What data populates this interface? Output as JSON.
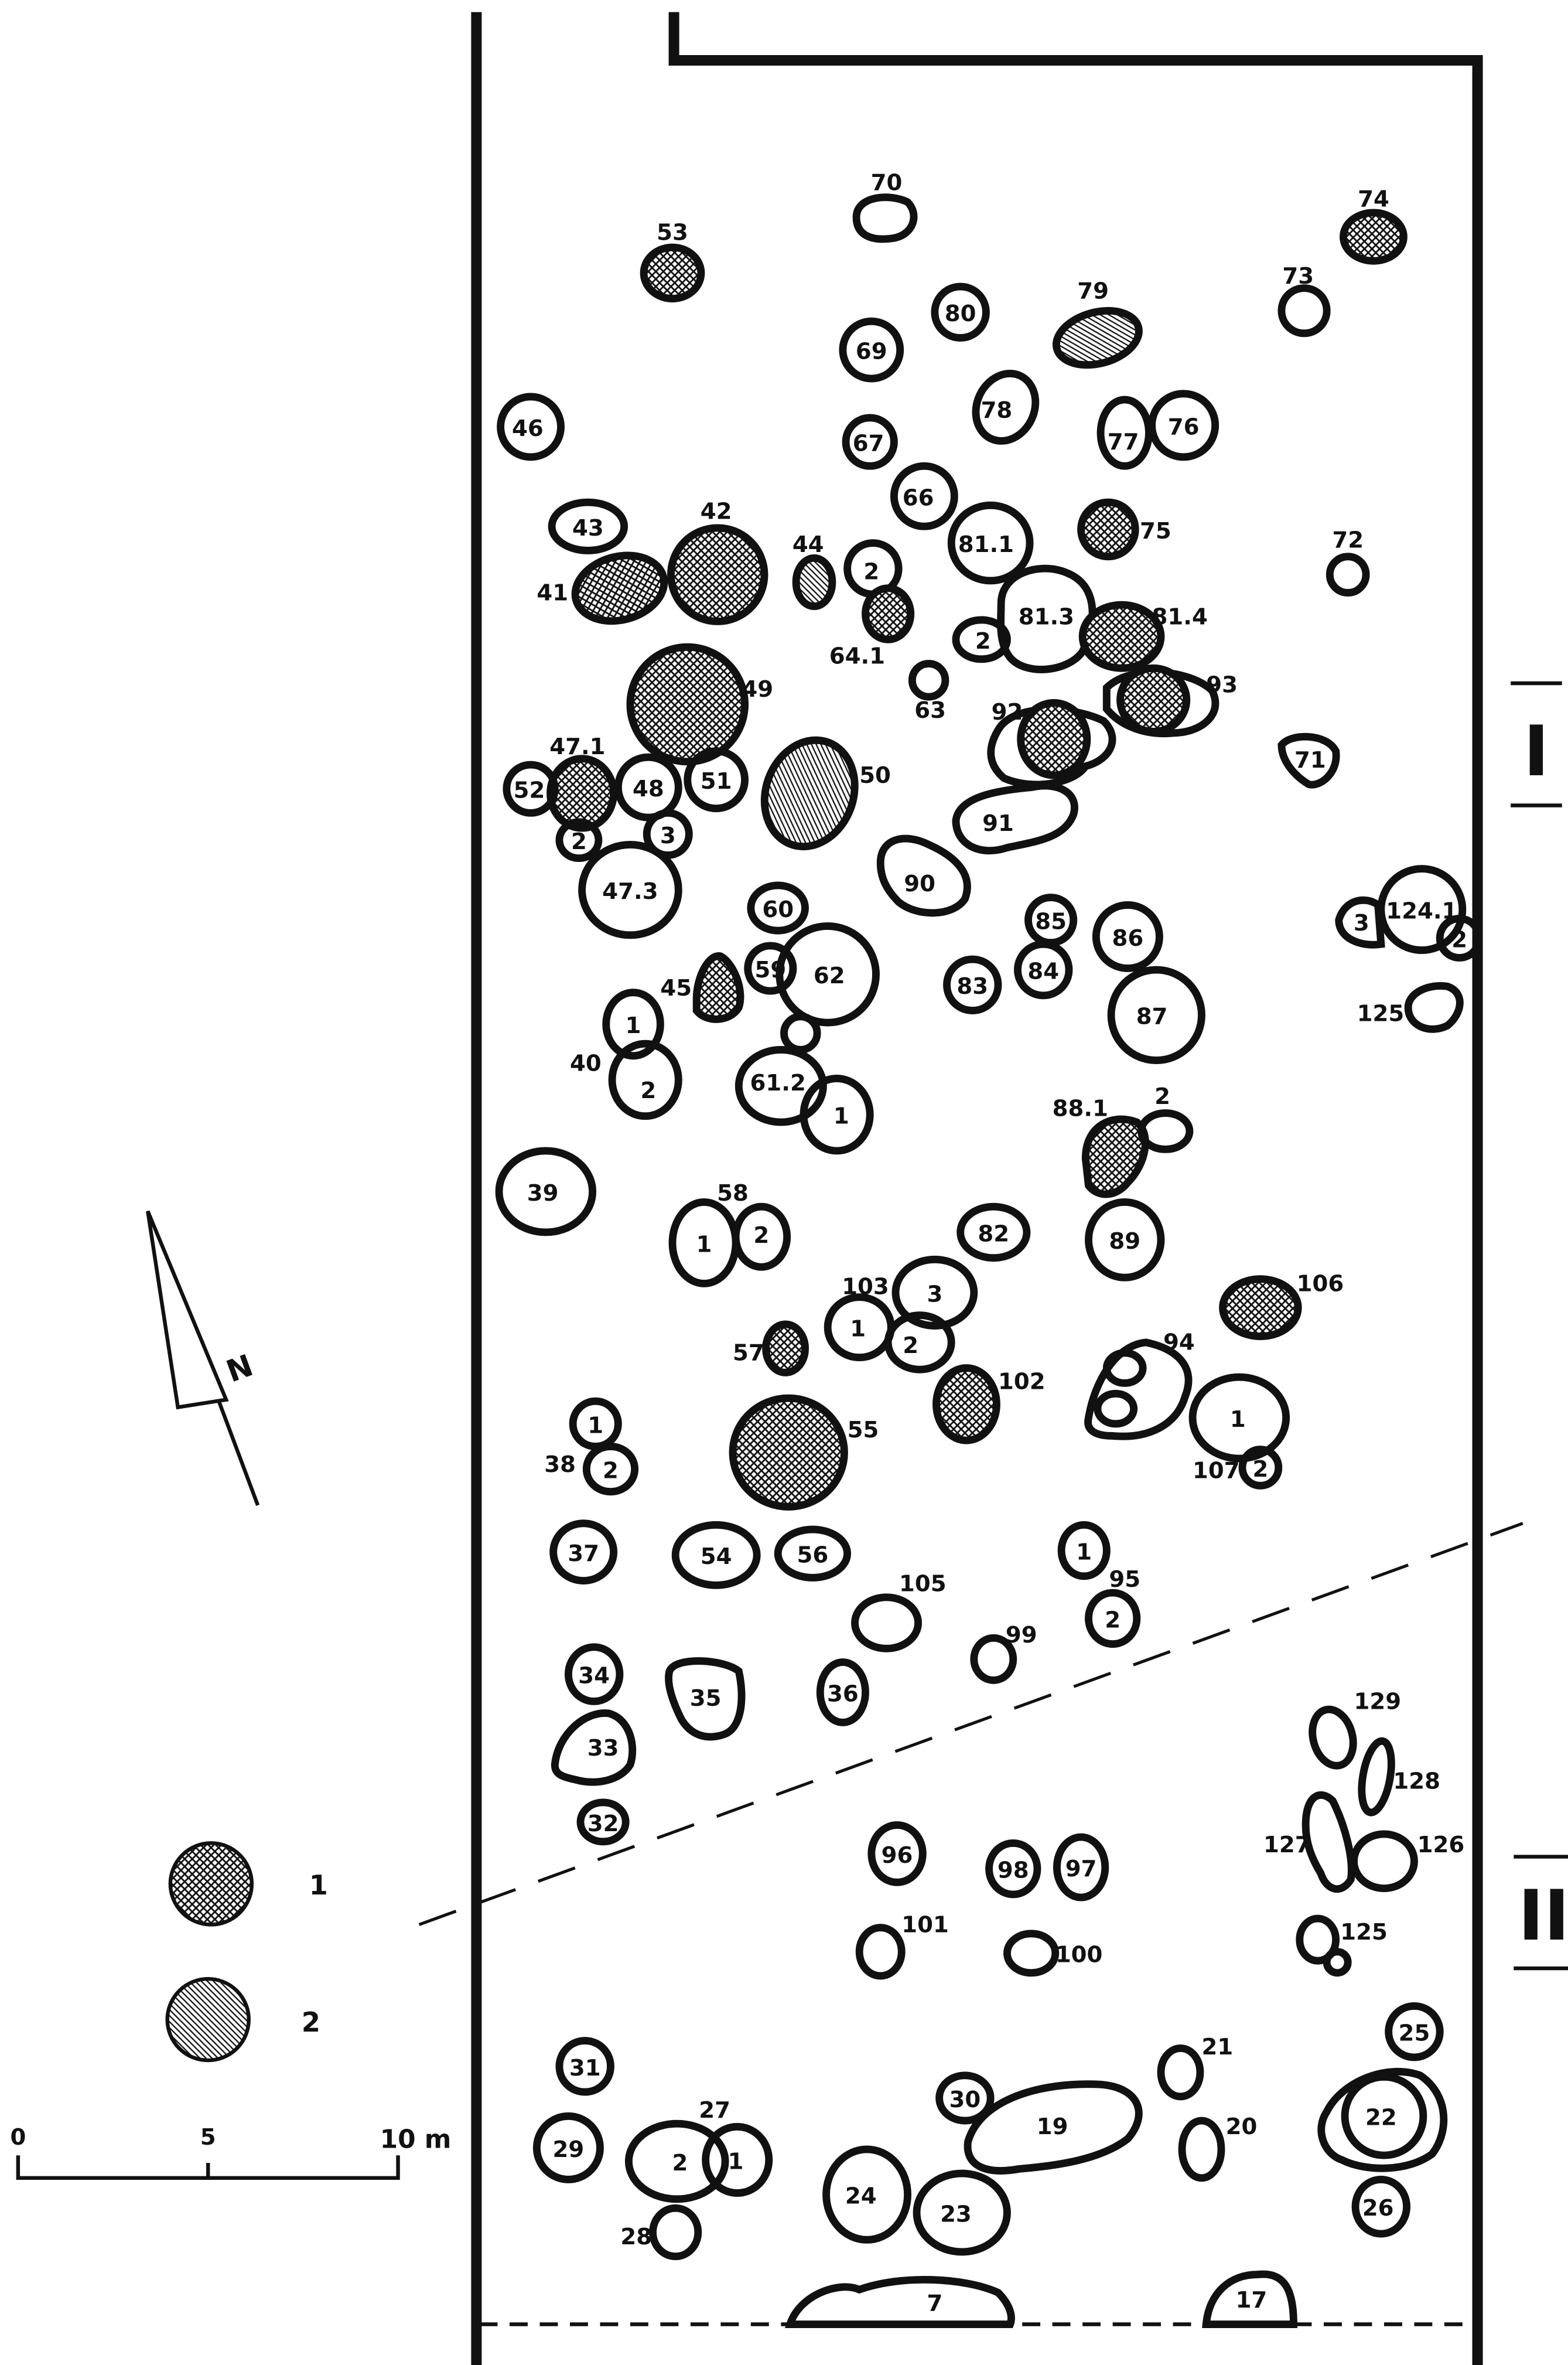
{
  "map": {
    "sections": [
      "I",
      "II"
    ],
    "legend": [
      {
        "key": "1",
        "fill": "crosshatch"
      },
      {
        "key": "2",
        "fill": "diagonal-hatch"
      }
    ],
    "scale": {
      "labels": [
        "0",
        "5",
        "10 m"
      ]
    },
    "north_label": "N",
    "colors": {
      "ink": "#111111",
      "paper": "#ffffff"
    }
  },
  "features": [
    {
      "id": "70",
      "fill": "none"
    },
    {
      "id": "74",
      "fill": "cross"
    },
    {
      "id": "53",
      "fill": "cross"
    },
    {
      "id": "80",
      "fill": "none"
    },
    {
      "id": "79",
      "fill": "hatch"
    },
    {
      "id": "73",
      "fill": "none"
    },
    {
      "id": "69",
      "fill": "none"
    },
    {
      "id": "46",
      "fill": "none"
    },
    {
      "id": "78",
      "fill": "none"
    },
    {
      "id": "77",
      "fill": "none"
    },
    {
      "id": "76",
      "fill": "none"
    },
    {
      "id": "67",
      "fill": "none"
    },
    {
      "id": "66",
      "fill": "none"
    },
    {
      "id": "43",
      "fill": "none"
    },
    {
      "id": "42",
      "fill": "cross"
    },
    {
      "id": "75",
      "fill": "cross"
    },
    {
      "id": "72",
      "fill": "none"
    },
    {
      "id": "81.1",
      "fill": "none"
    },
    {
      "id": "41",
      "fill": "cross"
    },
    {
      "id": "44",
      "fill": "hatch"
    },
    {
      "id": "2",
      "fill": "none"
    },
    {
      "id": "64.1",
      "fill": "cross"
    },
    {
      "id": "81.3",
      "fill": "none"
    },
    {
      "id": "81.4",
      "fill": "cross"
    },
    {
      "id": "63",
      "fill": "none"
    },
    {
      "id": "49",
      "fill": "cross"
    },
    {
      "id": "93",
      "fill": "cross"
    },
    {
      "id": "92",
      "fill": "cross"
    },
    {
      "id": "71",
      "fill": "none"
    },
    {
      "id": "47.1",
      "fill": "cross"
    },
    {
      "id": "52",
      "fill": "none"
    },
    {
      "id": "48",
      "fill": "none"
    },
    {
      "id": "51",
      "fill": "none"
    },
    {
      "id": "50",
      "fill": "hatch"
    },
    {
      "id": "91",
      "fill": "none"
    },
    {
      "id": "47.3",
      "fill": "none"
    },
    {
      "id": "90",
      "fill": "none"
    },
    {
      "id": "60",
      "fill": "none"
    },
    {
      "id": "85",
      "fill": "none"
    },
    {
      "id": "86",
      "fill": "none"
    },
    {
      "id": "124.1",
      "fill": "none"
    },
    {
      "id": "59",
      "fill": "none"
    },
    {
      "id": "62",
      "fill": "none"
    },
    {
      "id": "84",
      "fill": "none"
    },
    {
      "id": "83",
      "fill": "none"
    },
    {
      "id": "45",
      "fill": "cross"
    },
    {
      "id": "87",
      "fill": "none"
    },
    {
      "id": "125",
      "fill": "none"
    },
    {
      "id": "40",
      "fill": "none"
    },
    {
      "id": "61.2",
      "fill": "none"
    },
    {
      "id": "88.1",
      "fill": "cross"
    },
    {
      "id": "39",
      "fill": "none"
    },
    {
      "id": "58",
      "fill": "none"
    },
    {
      "id": "82",
      "fill": "none"
    },
    {
      "id": "89",
      "fill": "none"
    },
    {
      "id": "106",
      "fill": "cross"
    },
    {
      "id": "103",
      "fill": "none"
    },
    {
      "id": "57",
      "fill": "cross"
    },
    {
      "id": "94",
      "fill": "none"
    },
    {
      "id": "102",
      "fill": "cross"
    },
    {
      "id": "38",
      "fill": "none"
    },
    {
      "id": "55",
      "fill": "cross"
    },
    {
      "id": "107",
      "fill": "none"
    },
    {
      "id": "37",
      "fill": "none"
    },
    {
      "id": "54",
      "fill": "none"
    },
    {
      "id": "56",
      "fill": "none"
    },
    {
      "id": "95",
      "fill": "none"
    },
    {
      "id": "105",
      "fill": "none"
    },
    {
      "id": "99",
      "fill": "none"
    },
    {
      "id": "34",
      "fill": "none"
    },
    {
      "id": "35",
      "fill": "none"
    },
    {
      "id": "36",
      "fill": "none"
    },
    {
      "id": "33",
      "fill": "none"
    },
    {
      "id": "129",
      "fill": "none"
    },
    {
      "id": "128",
      "fill": "none"
    },
    {
      "id": "32",
      "fill": "none"
    },
    {
      "id": "96",
      "fill": "none"
    },
    {
      "id": "98",
      "fill": "none"
    },
    {
      "id": "97",
      "fill": "none"
    },
    {
      "id": "127",
      "fill": "none"
    },
    {
      "id": "126",
      "fill": "none"
    },
    {
      "id": "101",
      "fill": "none"
    },
    {
      "id": "100",
      "fill": "none"
    },
    {
      "id": "31",
      "fill": "none"
    },
    {
      "id": "21",
      "fill": "none"
    },
    {
      "id": "25",
      "fill": "none"
    },
    {
      "id": "30",
      "fill": "none"
    },
    {
      "id": "19",
      "fill": "none"
    },
    {
      "id": "22",
      "fill": "none"
    },
    {
      "id": "29",
      "fill": "none"
    },
    {
      "id": "27",
      "fill": "none"
    },
    {
      "id": "20",
      "fill": "none"
    },
    {
      "id": "24",
      "fill": "none"
    },
    {
      "id": "23",
      "fill": "none"
    },
    {
      "id": "26",
      "fill": "none"
    },
    {
      "id": "28",
      "fill": "none"
    },
    {
      "id": "7",
      "fill": "none"
    },
    {
      "id": "17",
      "fill": "none"
    }
  ],
  "labels": [
    "70",
    "74",
    "53",
    "79",
    "73",
    "80",
    "69",
    "78",
    "76",
    "77",
    "46",
    "67",
    "66",
    "43",
    "42",
    "44",
    "75",
    "72",
    "81.1",
    "41",
    "2",
    "81.3",
    "81.4",
    "64.1",
    "2",
    "63",
    "49",
    "93",
    "92",
    "71",
    "47.1",
    "52",
    "48",
    "51",
    "50",
    "2",
    "3",
    "91",
    "47.3",
    "90",
    "60",
    "85",
    "86",
    "3",
    "124.1",
    "2",
    "59",
    "62",
    "83",
    "84",
    "45",
    "87",
    "125",
    "1",
    "40",
    "2",
    "61.2",
    "1",
    "88.1",
    "2",
    "39",
    "58",
    "1",
    "2",
    "82",
    "89",
    "106",
    "103",
    "3",
    "1",
    "2",
    "57",
    "94",
    "102",
    "1",
    "1",
    "38",
    "2",
    "55",
    "107",
    "2",
    "37",
    "54",
    "56",
    "1",
    "95",
    "2",
    "105",
    "99",
    "34",
    "35",
    "36",
    "129",
    "33",
    "128",
    "32",
    "96",
    "127",
    "126",
    "98",
    "97",
    "101",
    "125",
    "100",
    "31",
    "21",
    "25",
    "30",
    "19",
    "22",
    "27",
    "29",
    "2",
    "1",
    "20",
    "24",
    "23",
    "26",
    "28",
    "7",
    "17"
  ]
}
